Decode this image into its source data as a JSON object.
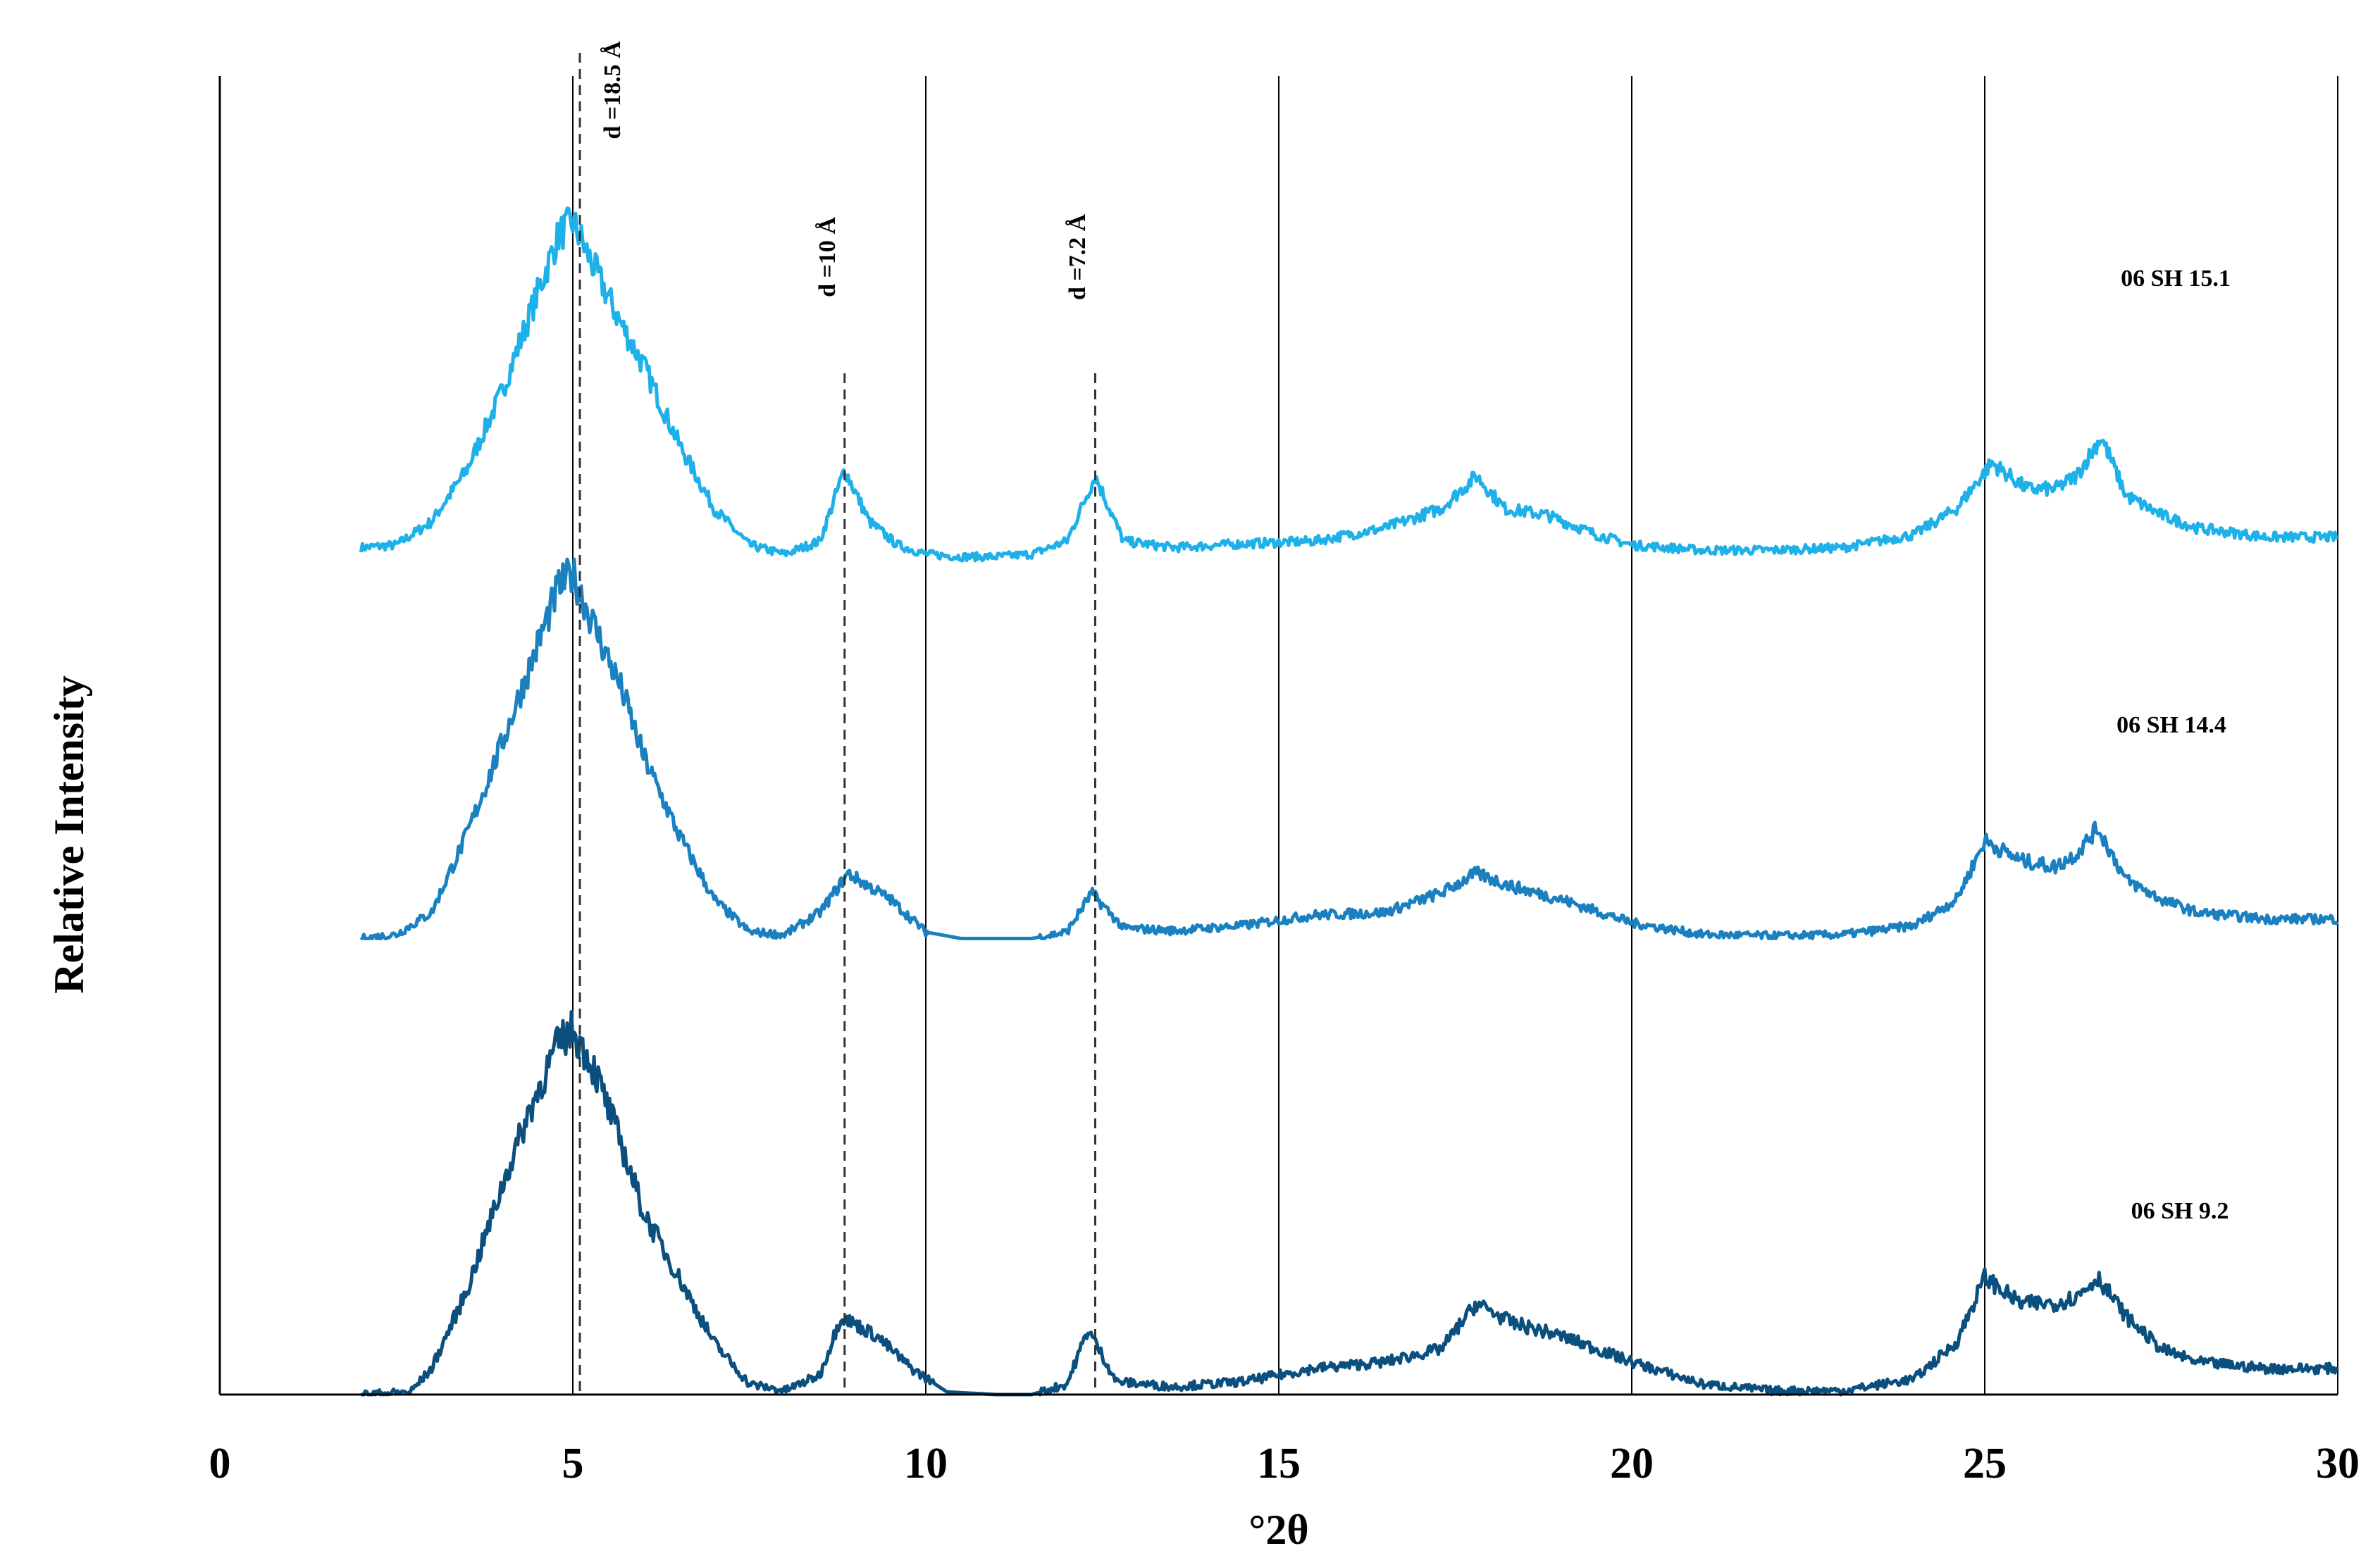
{
  "chart_data": {
    "type": "line",
    "title": "",
    "xlabel": "°2θ",
    "ylabel": "Relative Intensity",
    "xlim": [
      0,
      30
    ],
    "x_ticks": [
      "0",
      "5",
      "10",
      "15",
      "20",
      "25",
      "30"
    ],
    "grid": "vertical at 5, 10, 15, 20, 25, 30",
    "reference_lines": [
      {
        "label": "d =18.5 Å",
        "x": 5.1
      },
      {
        "label": "d =10 Å",
        "x": 8.85
      },
      {
        "label": "d =7.2 Å",
        "x": 12.4
      }
    ],
    "series": [
      {
        "name": "06 SH 15.1",
        "color": "#1eb0e8",
        "offset": 0.64,
        "x": [
          2.0,
          2.5,
          3.0,
          3.5,
          4.0,
          4.4,
          4.8,
          5.0,
          5.3,
          5.7,
          6.0,
          6.5,
          7.0,
          7.5,
          8.0,
          8.5,
          8.85,
          9.2,
          9.6,
          10.0,
          10.5,
          11.0,
          11.5,
          12.0,
          12.4,
          12.8,
          13.5,
          14.5,
          15.5,
          16.5,
          17.3,
          17.8,
          18.2,
          18.8,
          19.5,
          20.0,
          21.0,
          22.0,
          23.0,
          24.0,
          24.6,
          25.1,
          25.6,
          26.0,
          26.3,
          26.65,
          27.0,
          27.5,
          28.0,
          29.0,
          30.0
        ],
        "y": [
          0.01,
          0.012,
          0.03,
          0.07,
          0.13,
          0.19,
          0.25,
          0.26,
          0.225,
          0.18,
          0.15,
          0.09,
          0.04,
          0.012,
          0.005,
          0.015,
          0.07,
          0.03,
          0.012,
          0.005,
          0.003,
          0.003,
          0.005,
          0.015,
          0.065,
          0.015,
          0.01,
          0.013,
          0.015,
          0.025,
          0.04,
          0.065,
          0.04,
          0.035,
          0.02,
          0.012,
          0.008,
          0.008,
          0.01,
          0.02,
          0.04,
          0.075,
          0.055,
          0.055,
          0.065,
          0.095,
          0.05,
          0.035,
          0.025,
          0.018,
          0.018
        ]
      },
      {
        "name": "06 SH 14.4",
        "color": "#1a80c0",
        "offset": 0.35,
        "x": [
          2.0,
          2.5,
          3.0,
          3.5,
          4.0,
          4.4,
          4.8,
          5.0,
          5.3,
          5.7,
          6.0,
          6.5,
          7.0,
          7.5,
          8.0,
          8.5,
          8.9,
          9.5,
          10.0,
          10.5,
          11.0,
          11.5,
          12.0,
          12.35,
          12.8,
          13.5,
          14.5,
          15.5,
          16.5,
          17.3,
          17.8,
          18.3,
          19.0,
          20.0,
          21.0,
          22.0,
          23.0,
          24.0,
          24.6,
          25.0,
          25.5,
          26.0,
          26.3,
          26.6,
          27.0,
          27.5,
          28.0,
          29.0,
          30.0
        ],
        "y": [
          0.0,
          0.003,
          0.02,
          0.08,
          0.15,
          0.21,
          0.27,
          0.28,
          0.24,
          0.19,
          0.14,
          0.08,
          0.03,
          0.005,
          0.003,
          0.02,
          0.05,
          0.03,
          0.005,
          0.0,
          0.0,
          0.0,
          0.005,
          0.035,
          0.008,
          0.006,
          0.01,
          0.018,
          0.02,
          0.035,
          0.05,
          0.04,
          0.03,
          0.012,
          0.003,
          0.002,
          0.003,
          0.01,
          0.03,
          0.075,
          0.06,
          0.055,
          0.065,
          0.085,
          0.045,
          0.03,
          0.02,
          0.015,
          0.015
        ]
      },
      {
        "name": "06 SH 9.2",
        "color": "#0a4f7e",
        "offset": 0.0,
        "x": [
          2.0,
          2.7,
          3.0,
          3.5,
          4.0,
          4.4,
          4.8,
          5.0,
          5.3,
          5.7,
          6.0,
          6.5,
          7.0,
          7.5,
          8.0,
          8.5,
          8.8,
          9.3,
          9.8,
          10.3,
          11.0,
          11.5,
          12.0,
          12.3,
          12.7,
          13.5,
          14.5,
          15.5,
          16.5,
          17.3,
          17.8,
          18.3,
          19.0,
          20.0,
          21.0,
          22.0,
          23.0,
          24.0,
          24.6,
          25.0,
          25.5,
          26.0,
          26.3,
          26.6,
          27.0,
          27.5,
          28.0,
          29.0,
          30.0
        ],
        "y": [
          0.0,
          0.002,
          0.02,
          0.08,
          0.16,
          0.22,
          0.27,
          0.28,
          0.25,
          0.19,
          0.14,
          0.09,
          0.04,
          0.008,
          0.003,
          0.015,
          0.06,
          0.045,
          0.02,
          0.002,
          0.0,
          0.0,
          0.008,
          0.05,
          0.01,
          0.006,
          0.01,
          0.02,
          0.025,
          0.035,
          0.07,
          0.055,
          0.045,
          0.025,
          0.008,
          0.003,
          0.003,
          0.012,
          0.04,
          0.09,
          0.07,
          0.07,
          0.075,
          0.09,
          0.06,
          0.035,
          0.025,
          0.02,
          0.02
        ]
      }
    ],
    "series_labels": [
      {
        "text": "06 SH 15.1"
      },
      {
        "text": "06 SH 14.4"
      },
      {
        "text": "06 SH 9.2"
      }
    ]
  }
}
